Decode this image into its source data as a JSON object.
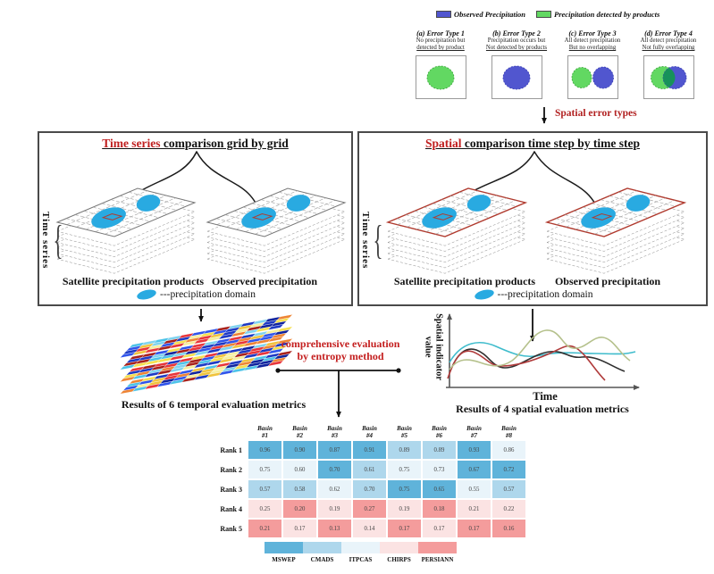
{
  "colors": {
    "accent_red": "#c01f1f",
    "dark_red_label": "#b22222",
    "observed_blue": "#5156cf",
    "detected_green": "#62d862",
    "overlap_green": "#17925a",
    "precip_domain_blue": "#29aae1",
    "red_grid_outline": "#b03a2e",
    "mswep_blue": "#5fb3da",
    "cmads_blue": "#aed7ec",
    "itpcas_blue": "#e9f4fa",
    "chirps_pink": "#fbe3e3",
    "persiann_pink": "#f49c9c"
  },
  "top_legend": {
    "observed_label": "Observed Precipitation",
    "detected_label": "Precipitation detected by products"
  },
  "error_types": [
    {
      "title": "(a) Error Type 1",
      "caption1": "No precipitation but",
      "caption2": "detected by product"
    },
    {
      "title": "(b) Error Type 2",
      "caption1": "Precipitation occurs but",
      "caption2": "Not detected by products"
    },
    {
      "title": "(c) Error Type 3",
      "caption1": "All detect precipitation",
      "caption2": "But no overlapping"
    },
    {
      "title": "(d) Error Type 4",
      "caption1": "All detect precipitation",
      "caption2": "Not fully overlapping"
    }
  ],
  "spatial_error_label": "Spatial error types",
  "panels": {
    "left": {
      "highlight": "Time series",
      "rest": " comparison grid by grid",
      "axis": "Time series",
      "label1": "Satellite precipitation products",
      "label2": "Observed precipitation",
      "legend": "---precipitation domain"
    },
    "right": {
      "highlight": "Spatial",
      "rest": " comparison time step by time step",
      "axis": "Time series",
      "label1": "Satellite precipitation products",
      "label2": "Observed precipitation",
      "legend": "---precipitation domain"
    }
  },
  "middle": {
    "method_line1": "comprehensive  evaluation",
    "method_line2": "by entropy method",
    "temporal_result": "Results of 6 temporal evaluation metrics",
    "spatial_result": "Results of 4 spatial evaluation metrics"
  },
  "sketch_chart": {
    "ylabel_line1": "Spatial indicator",
    "ylabel_line2": "value",
    "xlabel": "Time",
    "series_colors": [
      "#3fbccc",
      "#2f2f2f",
      "#b03b3b",
      "#b5c18c"
    ]
  },
  "rank_table": {
    "col_headers": [
      "Basin #1",
      "Basin #2",
      "Basin #3",
      "Basin #4",
      "Basin #5",
      "Basin #6",
      "Basin #7",
      "Basin #8"
    ],
    "row_labels": [
      "Rank 1",
      "Rank 2",
      "Rank 3",
      "Rank 4",
      "Rank 5"
    ],
    "values": [
      [
        0.96,
        0.9,
        0.87,
        0.91,
        0.89,
        0.89,
        0.93,
        0.86
      ],
      [
        0.75,
        0.6,
        0.7,
        0.61,
        0.75,
        0.73,
        0.67,
        0.72
      ],
      [
        0.57,
        0.58,
        0.62,
        0.7,
        0.75,
        0.65,
        0.55,
        0.57
      ],
      [
        0.25,
        0.2,
        0.19,
        0.27,
        0.19,
        0.18,
        0.21,
        0.22
      ],
      [
        0.21,
        0.17,
        0.13,
        0.14,
        0.17,
        0.17,
        0.17,
        0.16
      ]
    ],
    "cell_products": [
      [
        "m",
        "m",
        "m",
        "m",
        "c",
        "c",
        "m",
        "i"
      ],
      [
        "i",
        "i",
        "m",
        "c",
        "i",
        "i",
        "m",
        "m"
      ],
      [
        "c",
        "c",
        "i",
        "c",
        "m",
        "m",
        "i",
        "c"
      ],
      [
        "h",
        "p",
        "h",
        "p",
        "h",
        "p",
        "h",
        "h"
      ],
      [
        "p",
        "h",
        "p",
        "h",
        "p",
        "h",
        "p",
        "p"
      ]
    ]
  },
  "products_legend": [
    {
      "name": "MSWEP",
      "key": "m"
    },
    {
      "name": "CMADS",
      "key": "c"
    },
    {
      "name": "ITPCAS",
      "key": "i"
    },
    {
      "name": "CHIRPS",
      "key": "h"
    },
    {
      "name": "PERSIANN",
      "key": "p"
    }
  ]
}
